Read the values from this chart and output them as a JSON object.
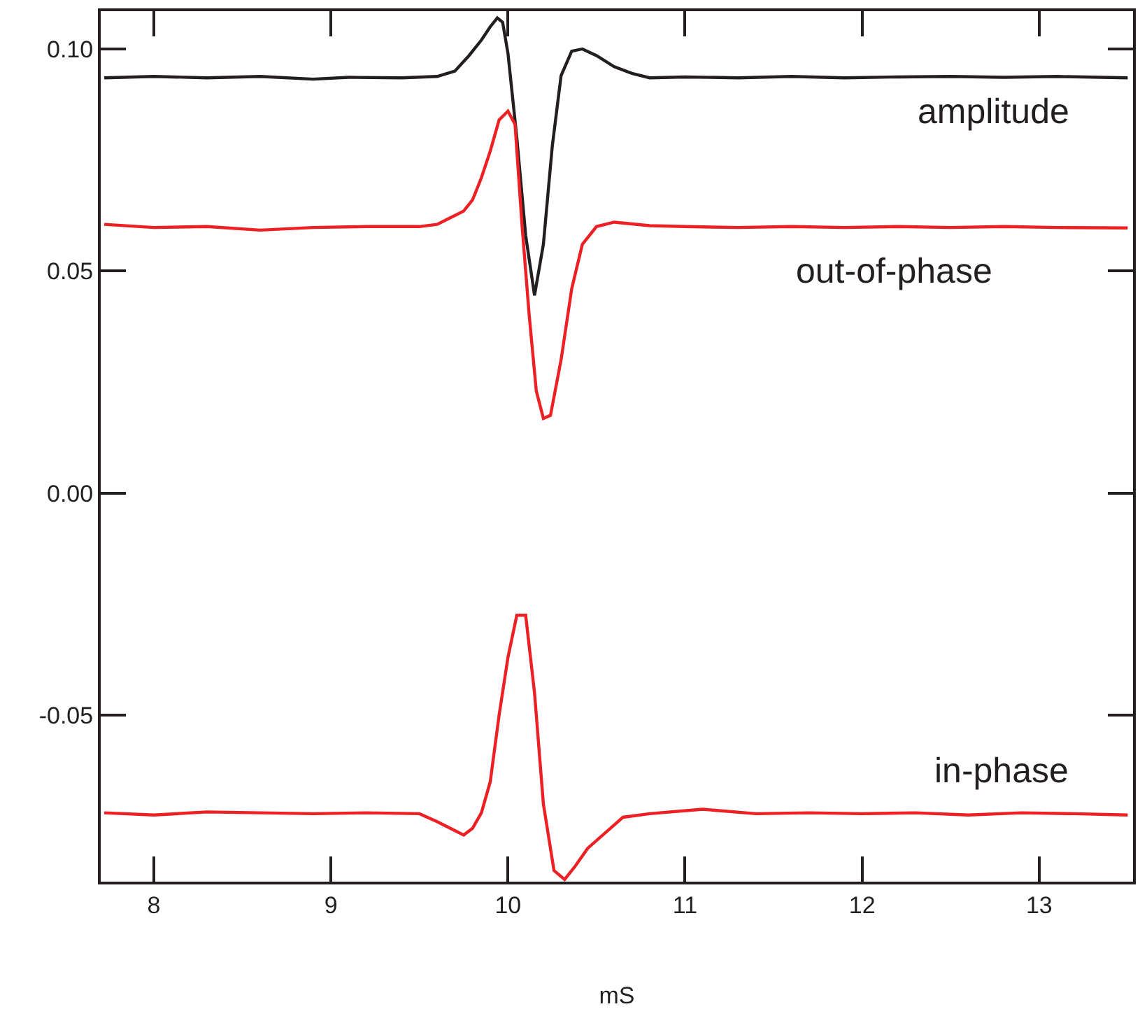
{
  "chart_data": {
    "type": "line",
    "xlabel": "mS",
    "xlim": [
      7.7,
      13.53
    ],
    "xticks": [
      8,
      9,
      10,
      11,
      12,
      13
    ],
    "ylim": [
      -0.0875,
      0.1085
    ],
    "yticks": [
      {
        "value": 0.1,
        "label": "0.10"
      },
      {
        "value": 0.05,
        "label": "0.05"
      },
      {
        "value": 0,
        "label": "0.00"
      },
      {
        "value": -0.05,
        "label": "-0.05"
      }
    ],
    "grid": false,
    "legend": false,
    "marker": "none",
    "line_style": "solid",
    "series": [
      {
        "name": "amplitude",
        "color": "#231f20",
        "x": [
          7.72,
          8.0,
          8.3,
          8.6,
          8.9,
          9.1,
          9.4,
          9.6,
          9.7,
          9.78,
          9.85,
          9.9,
          9.94,
          9.97,
          10.0,
          10.05,
          10.1,
          10.15,
          10.2,
          10.25,
          10.3,
          10.36,
          10.42,
          10.5,
          10.6,
          10.7,
          10.8,
          11.0,
          11.3,
          11.6,
          11.9,
          12.2,
          12.5,
          12.8,
          13.1,
          13.5
        ],
        "values": [
          0.0935,
          0.0938,
          0.0935,
          0.0938,
          0.0932,
          0.0936,
          0.0935,
          0.0938,
          0.095,
          0.0985,
          0.102,
          0.105,
          0.107,
          0.106,
          0.099,
          0.08,
          0.058,
          0.0445,
          0.056,
          0.078,
          0.094,
          0.0995,
          0.1,
          0.0985,
          0.096,
          0.0945,
          0.0935,
          0.0937,
          0.0935,
          0.0938,
          0.0935,
          0.0937,
          0.0938,
          0.0936,
          0.0938,
          0.0935
        ]
      },
      {
        "name": "out-of-phase",
        "color": "#ed2024",
        "x": [
          7.72,
          8.0,
          8.3,
          8.6,
          8.9,
          9.2,
          9.5,
          9.6,
          9.7,
          9.75,
          9.8,
          9.85,
          9.9,
          9.95,
          10.0,
          10.04,
          10.08,
          10.12,
          10.16,
          10.2,
          10.24,
          10.3,
          10.36,
          10.42,
          10.5,
          10.6,
          10.8,
          11.0,
          11.3,
          11.6,
          11.9,
          12.2,
          12.5,
          12.8,
          13.1,
          13.5
        ],
        "values": [
          0.0605,
          0.0598,
          0.06,
          0.0592,
          0.0598,
          0.06,
          0.06,
          0.0605,
          0.0625,
          0.0635,
          0.066,
          0.071,
          0.077,
          0.084,
          0.086,
          0.083,
          0.06,
          0.04,
          0.023,
          0.0168,
          0.0175,
          0.03,
          0.046,
          0.056,
          0.06,
          0.061,
          0.0602,
          0.06,
          0.0598,
          0.06,
          0.0598,
          0.06,
          0.0598,
          0.06,
          0.0598,
          0.0597
        ]
      },
      {
        "name": "in-phase",
        "color": "#ed2024",
        "x": [
          7.72,
          8.0,
          8.3,
          8.6,
          8.9,
          9.2,
          9.5,
          9.6,
          9.7,
          9.75,
          9.8,
          9.85,
          9.9,
          9.95,
          10.0,
          10.05,
          10.1,
          10.15,
          10.2,
          10.26,
          10.32,
          10.38,
          10.45,
          10.55,
          10.65,
          10.8,
          11.1,
          11.4,
          11.7,
          12.0,
          12.3,
          12.6,
          12.9,
          13.2,
          13.5
        ],
        "values": [
          -0.072,
          -0.0725,
          -0.0718,
          -0.072,
          -0.0722,
          -0.072,
          -0.0722,
          -0.074,
          -0.076,
          -0.077,
          -0.0755,
          -0.072,
          -0.065,
          -0.05,
          -0.037,
          -0.0275,
          -0.0275,
          -0.045,
          -0.07,
          -0.085,
          -0.087,
          -0.084,
          -0.08,
          -0.0765,
          -0.073,
          -0.0722,
          -0.0712,
          -0.0722,
          -0.072,
          -0.0722,
          -0.072,
          -0.0725,
          -0.072,
          -0.0722,
          -0.0725
        ]
      }
    ]
  }
}
